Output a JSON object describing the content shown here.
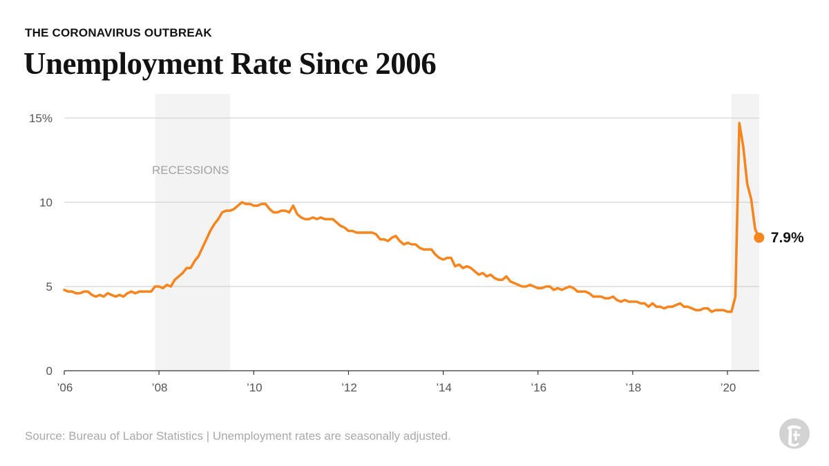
{
  "header": {
    "kicker": "THE CORONAVIRUS OUTBREAK",
    "title": "Unemployment Rate Since 2006"
  },
  "footer": {
    "source": "Source: Bureau of Labor Statistics | Unemployment rates are seasonally adjusted."
  },
  "logo": {
    "icon": "nyt-t-logo-icon"
  },
  "chart_data": {
    "type": "line",
    "title": "Unemployment Rate Since 2006",
    "xlabel": "",
    "ylabel": "",
    "xlim": [
      2006.0,
      2020.67
    ],
    "ylim": [
      0,
      15
    ],
    "grid": true,
    "yticks": [
      {
        "value": 15,
        "label": "15%"
      },
      {
        "value": 10,
        "label": "10"
      },
      {
        "value": 5,
        "label": "5"
      },
      {
        "value": 0,
        "label": "0"
      }
    ],
    "xticks": [
      {
        "value": 2006,
        "label": "’06"
      },
      {
        "value": 2008,
        "label": "’08"
      },
      {
        "value": 2010,
        "label": "’10"
      },
      {
        "value": 2012,
        "label": "’12"
      },
      {
        "value": 2014,
        "label": "’14"
      },
      {
        "value": 2016,
        "label": "’16"
      },
      {
        "value": 2018,
        "label": "’18"
      },
      {
        "value": 2020,
        "label": "’20"
      }
    ],
    "recessions": [
      {
        "start": 2007.92,
        "end": 2009.5
      },
      {
        "start": 2020.08,
        "end": 2020.67
      }
    ],
    "recession_label": "RECESSIONS",
    "line_color": "#f5851f",
    "recession_color": "#f3f3f3",
    "end_label": "7.9%",
    "series": [
      {
        "start": "2006-01",
        "values": [
          4.8,
          4.7,
          4.7,
          4.6,
          4.6,
          4.7,
          4.7,
          4.5,
          4.4,
          4.5,
          4.4,
          4.6,
          4.5,
          4.4,
          4.5,
          4.4,
          4.6,
          4.7,
          4.6,
          4.7,
          4.7,
          4.7,
          4.7,
          5.0,
          5.0,
          4.9,
          5.1,
          5.0,
          5.4,
          5.6,
          5.8,
          6.1,
          6.1,
          6.5,
          6.8,
          7.3,
          7.8,
          8.3,
          8.7,
          9.0,
          9.4,
          9.5,
          9.5,
          9.6,
          9.8,
          10.0,
          9.9,
          9.9,
          9.8,
          9.8,
          9.9,
          9.9,
          9.6,
          9.4,
          9.4,
          9.5,
          9.5,
          9.4,
          9.8,
          9.3,
          9.1,
          9.0,
          9.0,
          9.1,
          9.0,
          9.1,
          9.0,
          9.0,
          9.0,
          8.8,
          8.6,
          8.5,
          8.3,
          8.3,
          8.2,
          8.2,
          8.2,
          8.2,
          8.2,
          8.1,
          7.8,
          7.8,
          7.7,
          7.9,
          8.0,
          7.7,
          7.5,
          7.6,
          7.5,
          7.5,
          7.3,
          7.2,
          7.2,
          7.2,
          6.9,
          6.7,
          6.6,
          6.7,
          6.7,
          6.2,
          6.3,
          6.1,
          6.2,
          6.1,
          5.9,
          5.7,
          5.8,
          5.6,
          5.7,
          5.5,
          5.4,
          5.4,
          5.6,
          5.3,
          5.2,
          5.1,
          5.0,
          5.0,
          5.1,
          5.0,
          4.9,
          4.9,
          5.0,
          5.0,
          4.8,
          4.9,
          4.8,
          4.9,
          5.0,
          4.9,
          4.7,
          4.7,
          4.7,
          4.6,
          4.4,
          4.4,
          4.4,
          4.3,
          4.3,
          4.4,
          4.2,
          4.1,
          4.2,
          4.1,
          4.1,
          4.1,
          4.0,
          4.0,
          3.8,
          4.0,
          3.8,
          3.8,
          3.7,
          3.8,
          3.8,
          3.9,
          4.0,
          3.8,
          3.8,
          3.7,
          3.6,
          3.6,
          3.7,
          3.7,
          3.5,
          3.6,
          3.6,
          3.6,
          3.5,
          3.5,
          4.4,
          14.7,
          13.3,
          11.1,
          10.2,
          8.4,
          7.9
        ]
      }
    ]
  }
}
